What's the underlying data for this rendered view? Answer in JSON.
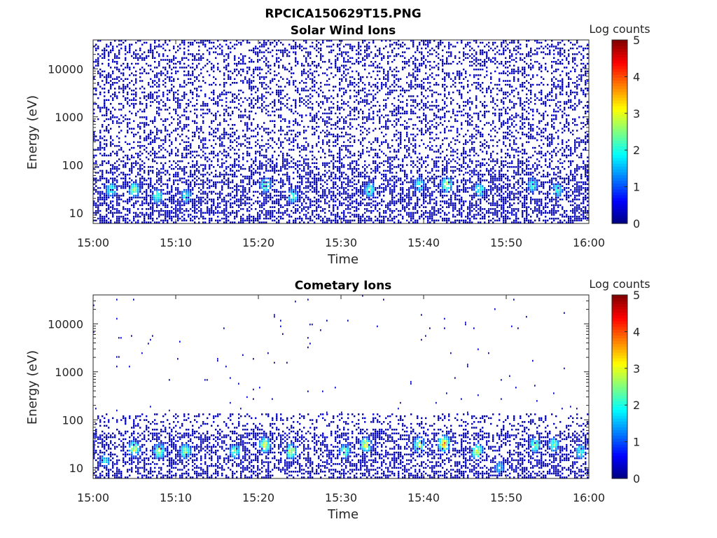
{
  "figure": {
    "title": "RPCICA150629T15.PNG",
    "colormap": "jet"
  },
  "chart_data": [
    {
      "type": "heatmap",
      "title": "Solar Wind Ions",
      "xlabel": "Time",
      "ylabel": "Energy (eV)",
      "y_scale": "log",
      "x_range": [
        "15:00",
        "16:00"
      ],
      "ylim": [
        6,
        40000
      ],
      "x_ticks": [
        "15:00",
        "15:10",
        "15:20",
        "15:30",
        "15:40",
        "15:50",
        "16:00"
      ],
      "y_ticks": [
        10,
        100,
        1000,
        10000
      ],
      "y_tick_labels": [
        "10",
        "100",
        "1000",
        "10000"
      ],
      "colorbar": {
        "label": "Log counts",
        "min": 0,
        "max": 5,
        "ticks": [
          "0",
          "1",
          "2",
          "3",
          "4",
          "5"
        ]
      },
      "grid": false,
      "hotspots": [
        {
          "time_min": 2.2,
          "energy_ev": 30,
          "log_counts": 2.3
        },
        {
          "time_min": 5.0,
          "energy_ev": 30,
          "log_counts": 2.6
        },
        {
          "time_min": 7.8,
          "energy_ev": 22,
          "log_counts": 2.4
        },
        {
          "time_min": 11.3,
          "energy_ev": 22,
          "log_counts": 2.2
        },
        {
          "time_min": 20.9,
          "energy_ev": 38,
          "log_counts": 2.6
        },
        {
          "time_min": 24.2,
          "energy_ev": 22,
          "log_counts": 2.3
        },
        {
          "time_min": 33.5,
          "energy_ev": 30,
          "log_counts": 2.4
        },
        {
          "time_min": 39.5,
          "energy_ev": 38,
          "log_counts": 2.2
        },
        {
          "time_min": 42.8,
          "energy_ev": 38,
          "log_counts": 3.0
        },
        {
          "time_min": 46.8,
          "energy_ev": 30,
          "log_counts": 2.4
        },
        {
          "time_min": 53.2,
          "energy_ev": 38,
          "log_counts": 2.2
        },
        {
          "time_min": 56.2,
          "energy_ev": 30,
          "log_counts": 2.3
        }
      ]
    },
    {
      "type": "heatmap",
      "title": "Cometary Ions",
      "xlabel": "Time",
      "ylabel": "Energy (eV)",
      "y_scale": "log",
      "x_range": [
        "15:00",
        "16:00"
      ],
      "ylim": [
        6,
        40000
      ],
      "x_ticks": [
        "15:00",
        "15:10",
        "15:20",
        "15:30",
        "15:40",
        "15:50",
        "16:00"
      ],
      "y_ticks": [
        10,
        100,
        1000,
        10000
      ],
      "y_tick_labels": [
        "10",
        "100",
        "1000",
        "10000"
      ],
      "colorbar": {
        "label": "Log counts",
        "min": 0,
        "max": 5,
        "ticks": [
          "0",
          "1",
          "2",
          "3",
          "4",
          "5"
        ]
      },
      "grid": false,
      "hotspots": [
        {
          "time_min": 1.5,
          "energy_ev": 14,
          "log_counts": 2.0
        },
        {
          "time_min": 5.0,
          "energy_ev": 25,
          "log_counts": 3.0
        },
        {
          "time_min": 8.0,
          "energy_ev": 22,
          "log_counts": 3.1
        },
        {
          "time_min": 11.2,
          "energy_ev": 22,
          "log_counts": 2.8
        },
        {
          "time_min": 17.2,
          "energy_ev": 22,
          "log_counts": 2.4
        },
        {
          "time_min": 20.8,
          "energy_ev": 30,
          "log_counts": 3.1
        },
        {
          "time_min": 24.0,
          "energy_ev": 22,
          "log_counts": 3.0
        },
        {
          "time_min": 30.5,
          "energy_ev": 22,
          "log_counts": 2.5
        },
        {
          "time_min": 33.0,
          "energy_ev": 30,
          "log_counts": 3.1
        },
        {
          "time_min": 39.5,
          "energy_ev": 30,
          "log_counts": 3.0
        },
        {
          "time_min": 42.5,
          "energy_ev": 32,
          "log_counts": 3.8
        },
        {
          "time_min": 46.5,
          "energy_ev": 22,
          "log_counts": 3.1
        },
        {
          "time_min": 49.2,
          "energy_ev": 10,
          "log_counts": 1.8
        },
        {
          "time_min": 53.5,
          "energy_ev": 30,
          "log_counts": 2.6
        },
        {
          "time_min": 55.8,
          "energy_ev": 30,
          "log_counts": 2.4
        },
        {
          "time_min": 59.0,
          "energy_ev": 22,
          "log_counts": 2.2
        }
      ]
    }
  ]
}
